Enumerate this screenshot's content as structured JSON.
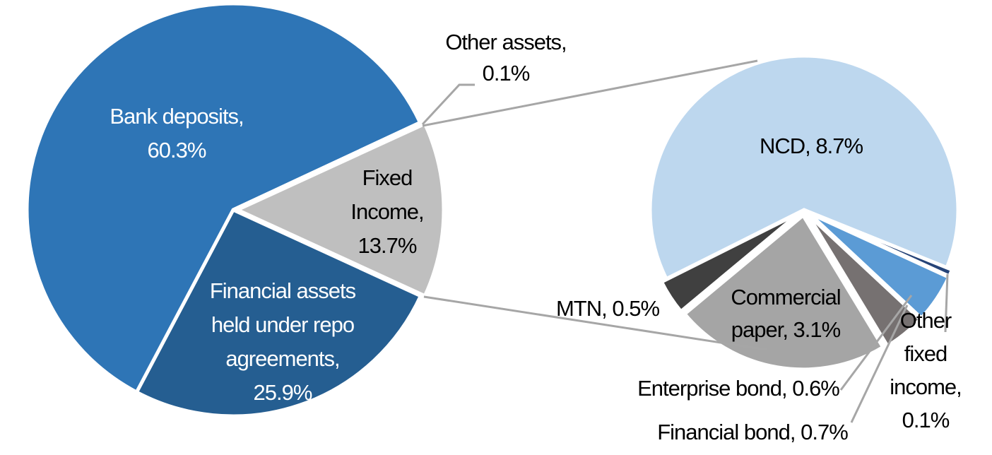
{
  "chart_data": {
    "type": "pie",
    "subtype": "pie-of-pie",
    "unit": "%",
    "main_pie": {
      "slices": [
        {
          "label": "Fixed Income",
          "value": 13.7,
          "color": "#BFBFBF",
          "text": [
            "Fixed",
            "Income,",
            "13.7%"
          ]
        },
        {
          "label": "Financial assets held under repo agreements",
          "value": 25.9,
          "color": "#255E91",
          "text": [
            "Financial assets",
            "held under repo",
            "agreements,",
            "25.9%"
          ]
        },
        {
          "label": "Bank deposits",
          "value": 60.3,
          "color": "#2E75B6",
          "text": [
            "Bank deposits,",
            "60.3%"
          ]
        },
        {
          "label": "Other assets",
          "value": 0.1,
          "color": "#A5A5A5",
          "text": [
            "Other assets,",
            "0.1%"
          ]
        }
      ]
    },
    "secondary_pie": {
      "breakdown_of": "Fixed Income",
      "slices": [
        {
          "label": "Other fixed income",
          "value": 0.1,
          "color": "#264478",
          "text": [
            "Other",
            "fixed",
            "income,",
            "0.1%"
          ]
        },
        {
          "label": "Financial bond",
          "value": 0.7,
          "color": "#5B9BD5",
          "text": [
            "Financial bond, 0.7%"
          ]
        },
        {
          "label": "Enterprise bond",
          "value": 0.6,
          "color": "#767171",
          "text": [
            "Enterprise bond, 0.6%"
          ]
        },
        {
          "label": "Commercial paper",
          "value": 3.1,
          "color": "#A5A5A5",
          "text": [
            "Commercial",
            "paper, 3.1%"
          ]
        },
        {
          "label": "MTN",
          "value": 0.5,
          "color": "#404040",
          "text": [
            "MTN, 0.5%"
          ]
        },
        {
          "label": "NCD",
          "value": 8.7,
          "color": "#BDD7EE",
          "text": [
            "NCD, 8.7%"
          ]
        }
      ]
    },
    "leader_color": "#A6A6A6"
  }
}
